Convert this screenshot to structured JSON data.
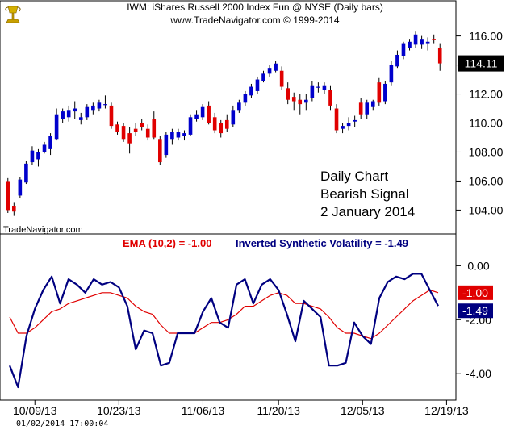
{
  "header": {
    "line1": "IWM:  iShares Russell 2000 Index Fun @ NYSE  (Daily bars)",
    "line2": "www.TradeNavigator.com © 1999-2014"
  },
  "watermark": "TradeNavigator.com",
  "annotation": [
    "Daily Chart",
    "Bearish Signal",
    "2 January 2014"
  ],
  "timestamp": "01/02/2014 17:00:04",
  "colors": {
    "up": "#0000cc",
    "down": "#e00000",
    "wick": "#000000",
    "ema": "#e00000",
    "isv": "#000080",
    "last_price_bg": "#000000",
    "ema_badge_bg": "#e00000",
    "isv_badge_bg": "#000080",
    "logo": "#c8a000"
  },
  "chart_data": [
    {
      "type": "candlestick",
      "title": "IWM:  iShares Russell 2000 Index Fun @ NYSE  (Daily bars)",
      "ylim": [
        102.8,
        116.7
      ],
      "y_ticks": [
        "104.00",
        "106.00",
        "108.00",
        "110.00",
        "112.00",
        "114.00",
        "116.00"
      ],
      "last_price_label": "114.11",
      "last_price": 114.11,
      "bars": [
        {
          "o": 106.0,
          "h": 106.2,
          "l": 103.8,
          "c": 104.0
        },
        {
          "o": 104.3,
          "h": 104.5,
          "l": 103.6,
          "c": 103.9
        },
        {
          "o": 105.0,
          "h": 106.3,
          "l": 104.8,
          "c": 106.1
        },
        {
          "o": 105.9,
          "h": 107.4,
          "l": 105.8,
          "c": 107.2
        },
        {
          "o": 107.3,
          "h": 108.4,
          "l": 107.1,
          "c": 108.1
        },
        {
          "o": 107.5,
          "h": 108.2,
          "l": 107.0,
          "c": 108.0
        },
        {
          "o": 108.0,
          "h": 108.7,
          "l": 107.9,
          "c": 108.5
        },
        {
          "o": 108.2,
          "h": 109.3,
          "l": 107.8,
          "c": 109.1
        },
        {
          "o": 108.9,
          "h": 111.0,
          "l": 108.8,
          "c": 110.6
        },
        {
          "o": 110.3,
          "h": 111.0,
          "l": 110.0,
          "c": 110.8
        },
        {
          "o": 110.4,
          "h": 111.2,
          "l": 110.1,
          "c": 110.9
        },
        {
          "o": 110.8,
          "h": 111.5,
          "l": 110.3,
          "c": 111.0
        },
        {
          "o": 110.2,
          "h": 110.7,
          "l": 109.9,
          "c": 110.4
        },
        {
          "o": 110.4,
          "h": 111.3,
          "l": 110.2,
          "c": 111.1
        },
        {
          "o": 110.9,
          "h": 111.4,
          "l": 110.6,
          "c": 111.2
        },
        {
          "o": 111.0,
          "h": 111.6,
          "l": 110.8,
          "c": 111.4
        },
        {
          "o": 111.3,
          "h": 111.9,
          "l": 111.0,
          "c": 111.3
        },
        {
          "o": 111.2,
          "h": 111.4,
          "l": 109.6,
          "c": 109.8
        },
        {
          "o": 109.9,
          "h": 110.1,
          "l": 109.2,
          "c": 109.4
        },
        {
          "o": 109.8,
          "h": 110.0,
          "l": 108.7,
          "c": 108.9
        },
        {
          "o": 109.3,
          "h": 109.7,
          "l": 107.9,
          "c": 108.6
        },
        {
          "o": 109.6,
          "h": 110.0,
          "l": 109.1,
          "c": 109.4
        },
        {
          "o": 110.0,
          "h": 110.3,
          "l": 109.5,
          "c": 109.7
        },
        {
          "o": 109.6,
          "h": 109.9,
          "l": 108.8,
          "c": 109.0
        },
        {
          "o": 110.3,
          "h": 110.8,
          "l": 108.9,
          "c": 109.0
        },
        {
          "o": 108.9,
          "h": 109.1,
          "l": 107.1,
          "c": 107.3
        },
        {
          "o": 107.8,
          "h": 109.4,
          "l": 107.6,
          "c": 109.2
        },
        {
          "o": 108.9,
          "h": 109.6,
          "l": 108.5,
          "c": 109.4
        },
        {
          "o": 109.0,
          "h": 109.6,
          "l": 108.8,
          "c": 109.4
        },
        {
          "o": 109.1,
          "h": 109.5,
          "l": 108.8,
          "c": 109.3
        },
        {
          "o": 109.2,
          "h": 110.6,
          "l": 109.1,
          "c": 110.4
        },
        {
          "o": 110.3,
          "h": 110.9,
          "l": 110.1,
          "c": 110.6
        },
        {
          "o": 110.4,
          "h": 111.3,
          "l": 110.2,
          "c": 111.1
        },
        {
          "o": 111.2,
          "h": 111.5,
          "l": 109.9,
          "c": 110.0
        },
        {
          "o": 110.4,
          "h": 110.7,
          "l": 109.3,
          "c": 109.5
        },
        {
          "o": 110.0,
          "h": 110.2,
          "l": 109.0,
          "c": 109.3
        },
        {
          "o": 110.2,
          "h": 110.6,
          "l": 109.4,
          "c": 109.6
        },
        {
          "o": 109.9,
          "h": 111.2,
          "l": 109.7,
          "c": 110.9
        },
        {
          "o": 110.9,
          "h": 111.6,
          "l": 110.7,
          "c": 111.4
        },
        {
          "o": 111.4,
          "h": 112.2,
          "l": 111.2,
          "c": 112.0
        },
        {
          "o": 111.9,
          "h": 112.7,
          "l": 111.7,
          "c": 112.5
        },
        {
          "o": 112.2,
          "h": 113.2,
          "l": 112.0,
          "c": 113.0
        },
        {
          "o": 112.9,
          "h": 113.6,
          "l": 112.8,
          "c": 113.4
        },
        {
          "o": 113.4,
          "h": 114.0,
          "l": 113.2,
          "c": 113.8
        },
        {
          "o": 113.6,
          "h": 114.3,
          "l": 113.5,
          "c": 114.1
        },
        {
          "o": 113.6,
          "h": 113.9,
          "l": 112.3,
          "c": 112.5
        },
        {
          "o": 112.4,
          "h": 112.8,
          "l": 111.3,
          "c": 111.6
        },
        {
          "o": 111.8,
          "h": 112.1,
          "l": 110.9,
          "c": 111.5
        },
        {
          "o": 111.6,
          "h": 112.0,
          "l": 110.6,
          "c": 111.3
        },
        {
          "o": 111.4,
          "h": 112.0,
          "l": 110.9,
          "c": 111.6
        },
        {
          "o": 111.7,
          "h": 112.9,
          "l": 111.5,
          "c": 112.6
        },
        {
          "o": 112.5,
          "h": 112.8,
          "l": 112.1,
          "c": 112.5
        },
        {
          "o": 112.3,
          "h": 112.8,
          "l": 112.0,
          "c": 112.6
        },
        {
          "o": 112.3,
          "h": 112.6,
          "l": 110.9,
          "c": 111.2
        },
        {
          "o": 111.0,
          "h": 111.3,
          "l": 109.3,
          "c": 109.5
        },
        {
          "o": 109.6,
          "h": 110.0,
          "l": 109.3,
          "c": 109.8
        },
        {
          "o": 109.8,
          "h": 110.4,
          "l": 109.5,
          "c": 110.0
        },
        {
          "o": 110.1,
          "h": 110.5,
          "l": 109.7,
          "c": 110.2
        },
        {
          "o": 111.4,
          "h": 111.7,
          "l": 110.3,
          "c": 110.6
        },
        {
          "o": 110.6,
          "h": 111.6,
          "l": 110.3,
          "c": 111.4
        },
        {
          "o": 111.1,
          "h": 111.6,
          "l": 110.9,
          "c": 111.5
        },
        {
          "o": 112.8,
          "h": 113.1,
          "l": 111.2,
          "c": 111.4
        },
        {
          "o": 111.5,
          "h": 112.9,
          "l": 111.3,
          "c": 112.7
        },
        {
          "o": 112.8,
          "h": 114.3,
          "l": 112.6,
          "c": 114.0
        },
        {
          "o": 113.9,
          "h": 115.0,
          "l": 113.8,
          "c": 114.7
        },
        {
          "o": 114.6,
          "h": 115.6,
          "l": 114.4,
          "c": 115.5
        },
        {
          "o": 115.2,
          "h": 115.8,
          "l": 115.0,
          "c": 115.6
        },
        {
          "o": 115.4,
          "h": 116.3,
          "l": 115.2,
          "c": 116.1
        },
        {
          "o": 115.4,
          "h": 116.0,
          "l": 115.1,
          "c": 115.8
        },
        {
          "o": 115.5,
          "h": 115.9,
          "l": 115.0,
          "c": 115.6
        },
        {
          "o": 115.8,
          "h": 116.1,
          "l": 115.5,
          "c": 115.7
        },
        {
          "o": 115.2,
          "h": 115.5,
          "l": 113.6,
          "c": 114.11
        }
      ]
    },
    {
      "type": "line",
      "legend": [
        {
          "text": "EMA (10,2) = -1.00",
          "color": "#e00000"
        },
        {
          "text": "Inverted Synthetic Volatility = -1.49",
          "color": "#000080"
        }
      ],
      "ylim": [
        -4.8,
        0.4
      ],
      "y_ticks": [
        "0.00",
        "-2.00",
        "-4.00"
      ],
      "x_tick_labels": [
        "10/09/13",
        "10/23/13",
        "11/06/13",
        "11/20/13",
        "12/05/13",
        "12/19/13"
      ],
      "x_tick_positions": [
        3,
        13,
        23,
        32,
        42,
        52
      ],
      "badges": [
        {
          "text": "-1.00",
          "value": -1.0,
          "series": "EMA (10,2)"
        },
        {
          "text": "-1.49",
          "value": -1.49,
          "series": "Inverted Synthetic Volatility"
        }
      ],
      "series": [
        {
          "name": "Inverted Synthetic Volatility",
          "values": [
            -3.7,
            -4.5,
            -2.6,
            -1.6,
            -0.9,
            -0.4,
            -1.4,
            -0.5,
            -0.7,
            -1.0,
            -0.5,
            -0.7,
            -0.6,
            -0.8,
            -1.5,
            -3.1,
            -2.4,
            -2.5,
            -3.7,
            -3.6,
            -2.5,
            -2.5,
            -2.5,
            -1.7,
            -1.2,
            -2.1,
            -2.3,
            -0.7,
            -0.5,
            -1.4,
            -0.7,
            -0.5,
            -0.9,
            -1.8,
            -2.8,
            -1.3,
            -1.6,
            -1.9,
            -3.7,
            -3.7,
            -3.6,
            -2.1,
            -2.6,
            -2.9,
            -1.2,
            -0.6,
            -0.4,
            -0.5,
            -0.3,
            -0.3,
            -0.9,
            -1.49
          ]
        },
        {
          "name": "EMA (10,2)",
          "values": [
            -1.9,
            -2.5,
            -2.5,
            -2.3,
            -2.0,
            -1.7,
            -1.6,
            -1.4,
            -1.3,
            -1.2,
            -1.1,
            -1.0,
            -1.0,
            -1.1,
            -1.2,
            -1.5,
            -1.7,
            -1.8,
            -2.2,
            -2.5,
            -2.5,
            -2.5,
            -2.5,
            -2.3,
            -2.1,
            -2.1,
            -2.0,
            -1.8,
            -1.5,
            -1.5,
            -1.3,
            -1.1,
            -1.0,
            -1.1,
            -1.4,
            -1.4,
            -1.5,
            -1.6,
            -1.9,
            -2.3,
            -2.5,
            -2.5,
            -2.6,
            -2.7,
            -2.5,
            -2.2,
            -1.9,
            -1.6,
            -1.3,
            -1.1,
            -0.9,
            -1.0
          ]
        }
      ]
    }
  ]
}
